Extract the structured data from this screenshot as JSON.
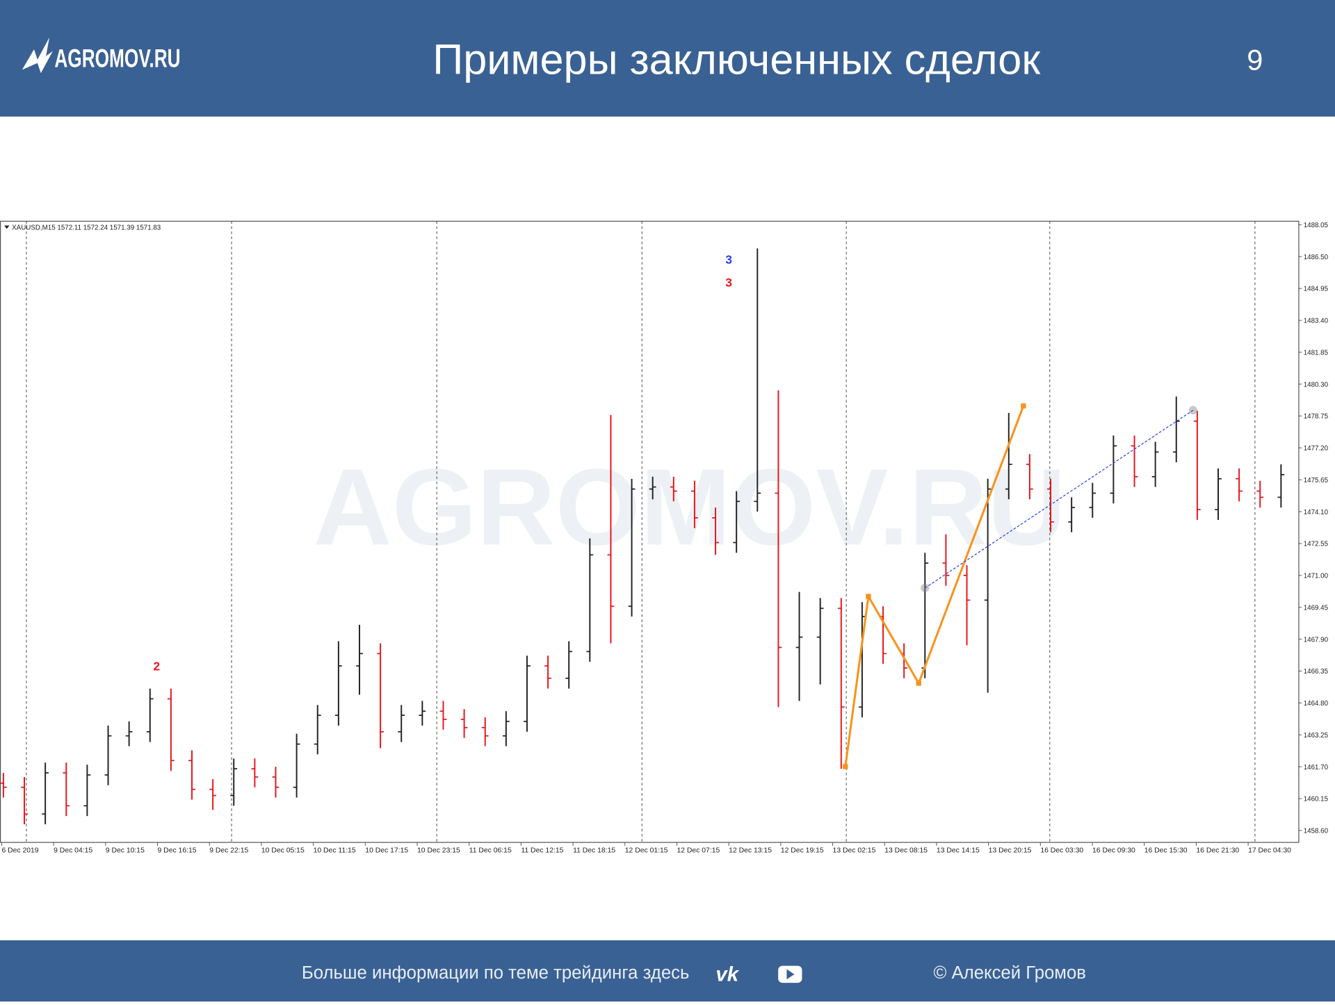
{
  "header": {
    "logo": "AGROMOV.RU",
    "title": "Примеры заключенных сделок",
    "page": "9"
  },
  "footer": {
    "text": "Больше информации по теме трейдинга здесь",
    "author": "© Алексей Громов"
  },
  "watermark": "AGROMOV.RU",
  "chart_data": {
    "type": "ohlc",
    "title": "XAUUSD,M15  1572.11 1572.24 1571.39 1571.83",
    "up_color": "#222222",
    "down_color": "#e8141c",
    "x_labels": [
      "6 Dec 2019",
      "9 Dec 04:15",
      "9 Dec 10:15",
      "9 Dec 16:15",
      "9 Dec 22:15",
      "10 Dec 05:15",
      "10 Dec 11:15",
      "10 Dec 17:15",
      "10 Dec 23:15",
      "11 Dec 06:15",
      "11 Dec 12:15",
      "11 Dec 18:15",
      "12 Dec 01:15",
      "12 Dec 07:15",
      "12 Dec 13:15",
      "12 Dec 19:15",
      "13 Dec 02:15",
      "13 Dec 08:15",
      "13 Dec 14:15",
      "13 Dec 20:15",
      "16 Dec 03:30",
      "16 Dec 09:30",
      "16 Dec 15:30",
      "16 Dec 21:30",
      "17 Dec 04:30"
    ],
    "open": [
      1460.9,
      1460.7,
      1459.4,
      1461.4,
      1459.8,
      1461.3,
      1463.2,
      1463.4,
      1465.0,
      1462.0,
      1460.6,
      1460.3,
      1461.6,
      1461.2,
      1460.7,
      1462.8,
      1464.2,
      1466.6,
      1467.2,
      1463.4,
      1464.2,
      1464.4,
      1464.0,
      1463.6,
      1463.2,
      1463.9,
      1466.6,
      1466.0,
      1467.3,
      1472.0,
      1469.5,
      1475.2,
      1475.3,
      1475.1,
      1473.8,
      1472.6,
      1474.6,
      1475.0,
      1467.5,
      1468.0,
      1469.4,
      1464.6,
      1469.0,
      1467.2,
      1466.5,
      1471.6,
      1471.0,
      1469.8,
      1475.2,
      1476.4,
      1475.2,
      1473.6,
      1474.3,
      1475.0,
      1477.3,
      1475.8,
      1477.0,
      1478.5,
      1474.2,
      1475.7,
      1475.1,
      1474.8
    ],
    "high": [
      1461.4,
      1461.2,
      1461.9,
      1461.9,
      1461.8,
      1463.7,
      1463.9,
      1465.5,
      1465.5,
      1462.5,
      1461.1,
      1462.1,
      1462.1,
      1461.7,
      1463.3,
      1464.7,
      1467.8,
      1468.6,
      1467.7,
      1464.7,
      1464.9,
      1464.9,
      1464.5,
      1464.1,
      1464.4,
      1467.1,
      1467.1,
      1467.8,
      1472.8,
      1478.8,
      1475.7,
      1475.8,
      1475.8,
      1475.6,
      1474.3,
      1475.1,
      1486.9,
      1480.0,
      1470.2,
      1469.9,
      1469.9,
      1469.7,
      1469.5,
      1467.7,
      1472.1,
      1473.0,
      1471.5,
      1475.7,
      1478.9,
      1476.9,
      1475.7,
      1474.8,
      1475.5,
      1477.8,
      1477.8,
      1477.5,
      1479.7,
      1479.0,
      1476.2,
      1476.2,
      1475.6,
      1476.4
    ],
    "low": [
      1460.2,
      1458.9,
      1458.9,
      1459.3,
      1459.3,
      1460.8,
      1462.7,
      1462.9,
      1461.5,
      1460.1,
      1459.6,
      1459.8,
      1460.7,
      1460.2,
      1460.2,
      1462.3,
      1463.7,
      1465.2,
      1462.6,
      1462.9,
      1463.7,
      1463.5,
      1463.1,
      1462.7,
      1462.7,
      1463.4,
      1465.5,
      1465.5,
      1466.8,
      1467.7,
      1469.0,
      1474.7,
      1474.6,
      1473.3,
      1472.0,
      1472.1,
      1474.1,
      1464.6,
      1464.9,
      1465.7,
      1461.6,
      1464.1,
      1466.7,
      1466.0,
      1466.0,
      1470.5,
      1467.6,
      1465.3,
      1474.7,
      1474.7,
      1473.1,
      1473.1,
      1473.8,
      1474.5,
      1475.3,
      1475.3,
      1476.5,
      1473.7,
      1473.7,
      1474.6,
      1474.3,
      1474.3
    ],
    "close": [
      1460.7,
      1459.4,
      1461.4,
      1459.8,
      1461.3,
      1463.2,
      1463.4,
      1465.0,
      1462.0,
      1460.6,
      1460.3,
      1461.6,
      1461.2,
      1460.7,
      1462.8,
      1464.2,
      1466.6,
      1467.2,
      1463.4,
      1464.2,
      1464.4,
      1464.0,
      1463.6,
      1463.2,
      1463.9,
      1466.6,
      1466.0,
      1467.3,
      1472.0,
      1469.5,
      1475.2,
      1475.3,
      1475.1,
      1473.8,
      1472.6,
      1474.6,
      1475.0,
      1467.5,
      1468.0,
      1469.4,
      1464.6,
      1469.0,
      1467.2,
      1466.5,
      1471.6,
      1471.0,
      1469.8,
      1475.2,
      1476.4,
      1475.2,
      1473.6,
      1474.3,
      1475.0,
      1477.3,
      1475.8,
      1477.0,
      1478.5,
      1474.2,
      1475.7,
      1475.1,
      1474.8,
      1475.9
    ],
    "zigzag": {
      "color": "#f7931e",
      "x": [
        40.2,
        41.3,
        43.7,
        48.7
      ],
      "values": [
        1461.71,
        1469.98,
        1465.76,
        1479.24
      ]
    },
    "trendline": {
      "color": "#2b3bf0",
      "x": [
        44.0,
        56.8
      ],
      "values": [
        1470.39,
        1479.03
      ]
    },
    "annotations": [
      {
        "text": "2",
        "color": "#e8141c"
      },
      {
        "text": "3",
        "color": "#2b3bf0"
      },
      {
        "text": "3",
        "color": "#e8141c"
      }
    ],
    "ylim": [
      1458.02,
      1488.22
    ],
    "yticks": [
      1488.05,
      {
        "value": 1486.5,
        "label": "1486.50"
      },
      1484.95,
      {
        "value": 1483.4,
        "label": "1483.40"
      },
      1481.85,
      {
        "value": 1480.3,
        "label": "1480.30"
      },
      1478.75,
      {
        "value": 1477.2,
        "label": "1477.20"
      },
      1475.65,
      {
        "value": 1474.1,
        "label": "1474.10"
      },
      1472.55,
      {
        "value": 1471,
        "label": "1471.00"
      },
      1469.45,
      {
        "value": 1467.9,
        "label": "1467.90"
      },
      1466.35,
      {
        "value": 1464.8,
        "label": "1464.80"
      },
      1463.25,
      {
        "value": 1461.7,
        "label": "1461.70"
      },
      1460.15,
      {
        "value": 1458.6,
        "label": "1458.60"
      }
    ]
  }
}
